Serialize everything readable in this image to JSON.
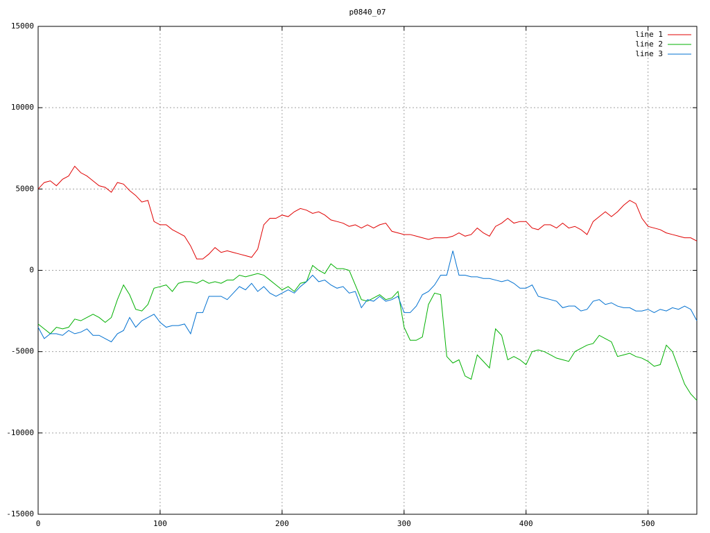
{
  "chart_data": {
    "type": "line",
    "title": "p0840_07",
    "x": [
      0,
      5,
      10,
      15,
      20,
      25,
      30,
      35,
      40,
      45,
      50,
      55,
      60,
      65,
      70,
      75,
      80,
      85,
      90,
      95,
      100,
      105,
      110,
      115,
      120,
      125,
      130,
      135,
      140,
      145,
      150,
      155,
      160,
      165,
      170,
      175,
      180,
      185,
      190,
      195,
      200,
      205,
      210,
      215,
      220,
      225,
      230,
      235,
      240,
      245,
      250,
      255,
      260,
      265,
      270,
      275,
      280,
      285,
      290,
      295,
      300,
      305,
      310,
      315,
      320,
      325,
      330,
      335,
      340,
      345,
      350,
      355,
      360,
      365,
      370,
      375,
      380,
      385,
      390,
      395,
      400,
      405,
      410,
      415,
      420,
      425,
      430,
      435,
      440,
      445,
      450,
      455,
      460,
      465,
      470,
      475,
      480,
      485,
      490,
      495,
      500,
      505,
      510,
      515,
      520,
      525,
      530,
      535,
      540
    ],
    "series": [
      {
        "name": "line 1",
        "color": "#e00000",
        "values": [
          5000,
          5400,
          5500,
          5200,
          5600,
          5800,
          6400,
          6000,
          5800,
          5500,
          5200,
          5100,
          4800,
          5400,
          5300,
          4900,
          4600,
          4200,
          4300,
          3000,
          2800,
          2800,
          2500,
          2300,
          2100,
          1500,
          700,
          700,
          1000,
          1400,
          1100,
          1200,
          1100,
          1000,
          900,
          800,
          1300,
          2800,
          3200,
          3200,
          3400,
          3300,
          3600,
          3800,
          3700,
          3500,
          3600,
          3400,
          3100,
          3000,
          2900,
          2700,
          2800,
          2600,
          2800,
          2600,
          2800,
          2900,
          2400,
          2300,
          2200,
          2200,
          2100,
          2000,
          1900,
          2000,
          2000,
          2000,
          2100,
          2300,
          2100,
          2200,
          2600,
          2300,
          2100,
          2700,
          2900,
          3200,
          2900,
          3000,
          3000,
          2600,
          2500,
          2800,
          2800,
          2600,
          2900,
          2600,
          2700,
          2500,
          2200,
          3000,
          3300,
          3600,
          3300,
          3600,
          4000,
          4300,
          4100,
          3200,
          2700,
          2600,
          2500,
          2300,
          2200,
          2100,
          2000,
          2000,
          1800
        ]
      },
      {
        "name": "line 2",
        "color": "#00b000",
        "values": [
          -3300,
          -3600,
          -3900,
          -3500,
          -3600,
          -3500,
          -3000,
          -3100,
          -2900,
          -2700,
          -2900,
          -3200,
          -2900,
          -1800,
          -900,
          -1500,
          -2400,
          -2500,
          -2100,
          -1100,
          -1000,
          -900,
          -1300,
          -800,
          -700,
          -700,
          -800,
          -600,
          -800,
          -700,
          -800,
          -600,
          -600,
          -300,
          -400,
          -300,
          -200,
          -300,
          -600,
          -900,
          -1200,
          -1000,
          -1300,
          -800,
          -700,
          300,
          0,
          -200,
          400,
          100,
          100,
          0,
          -900,
          -1800,
          -1900,
          -1700,
          -1500,
          -1800,
          -1700,
          -1300,
          -3500,
          -4300,
          -4300,
          -4100,
          -2100,
          -1400,
          -1500,
          -5300,
          -5700,
          -5500,
          -6500,
          -6700,
          -5200,
          -5600,
          -6000,
          -3600,
          -4000,
          -5500,
          -5300,
          -5500,
          -5800,
          -5000,
          -4900,
          -5000,
          -5200,
          -5400,
          -5500,
          -5600,
          -5000,
          -4800,
          -4600,
          -4500,
          -4000,
          -4200,
          -4400,
          -5300,
          -5200,
          -5100,
          -5300,
          -5400,
          -5600,
          -5900,
          -5800,
          -4600,
          -5000,
          -6000,
          -7000,
          -7600,
          -8000
        ]
      },
      {
        "name": "line 3",
        "color": "#0070d0",
        "values": [
          -3500,
          -4200,
          -3900,
          -3900,
          -4000,
          -3700,
          -3900,
          -3800,
          -3600,
          -4000,
          -4000,
          -4200,
          -4400,
          -3900,
          -3700,
          -2900,
          -3500,
          -3100,
          -2900,
          -2700,
          -3200,
          -3500,
          -3400,
          -3400,
          -3300,
          -3900,
          -2600,
          -2600,
          -1600,
          -1600,
          -1600,
          -1800,
          -1400,
          -1000,
          -1200,
          -800,
          -1300,
          -1000,
          -1400,
          -1600,
          -1400,
          -1200,
          -1400,
          -1000,
          -700,
          -300,
          -700,
          -600,
          -900,
          -1100,
          -1000,
          -1400,
          -1300,
          -2300,
          -1800,
          -1900,
          -1600,
          -1900,
          -1800,
          -1600,
          -2600,
          -2600,
          -2200,
          -1500,
          -1300,
          -900,
          -300,
          -300,
          1200,
          -300,
          -300,
          -400,
          -400,
          -500,
          -500,
          -600,
          -700,
          -600,
          -800,
          -1100,
          -1100,
          -900,
          -1600,
          -1700,
          -1800,
          -1900,
          -2300,
          -2200,
          -2200,
          -2500,
          -2400,
          -1900,
          -1800,
          -2100,
          -2000,
          -2200,
          -2300,
          -2300,
          -2500,
          -2500,
          -2400,
          -2600,
          -2400,
          -2500,
          -2300,
          -2400,
          -2200,
          -2400,
          -3100
        ]
      }
    ],
    "xlim": [
      0,
      540
    ],
    "xticks": [
      0,
      100,
      200,
      300,
      400,
      500
    ],
    "ylim": [
      -15000,
      15000
    ],
    "yticks": [
      -15000,
      -10000,
      -5000,
      0,
      5000,
      10000,
      15000
    ],
    "grid": true,
    "legend": "top-right"
  }
}
